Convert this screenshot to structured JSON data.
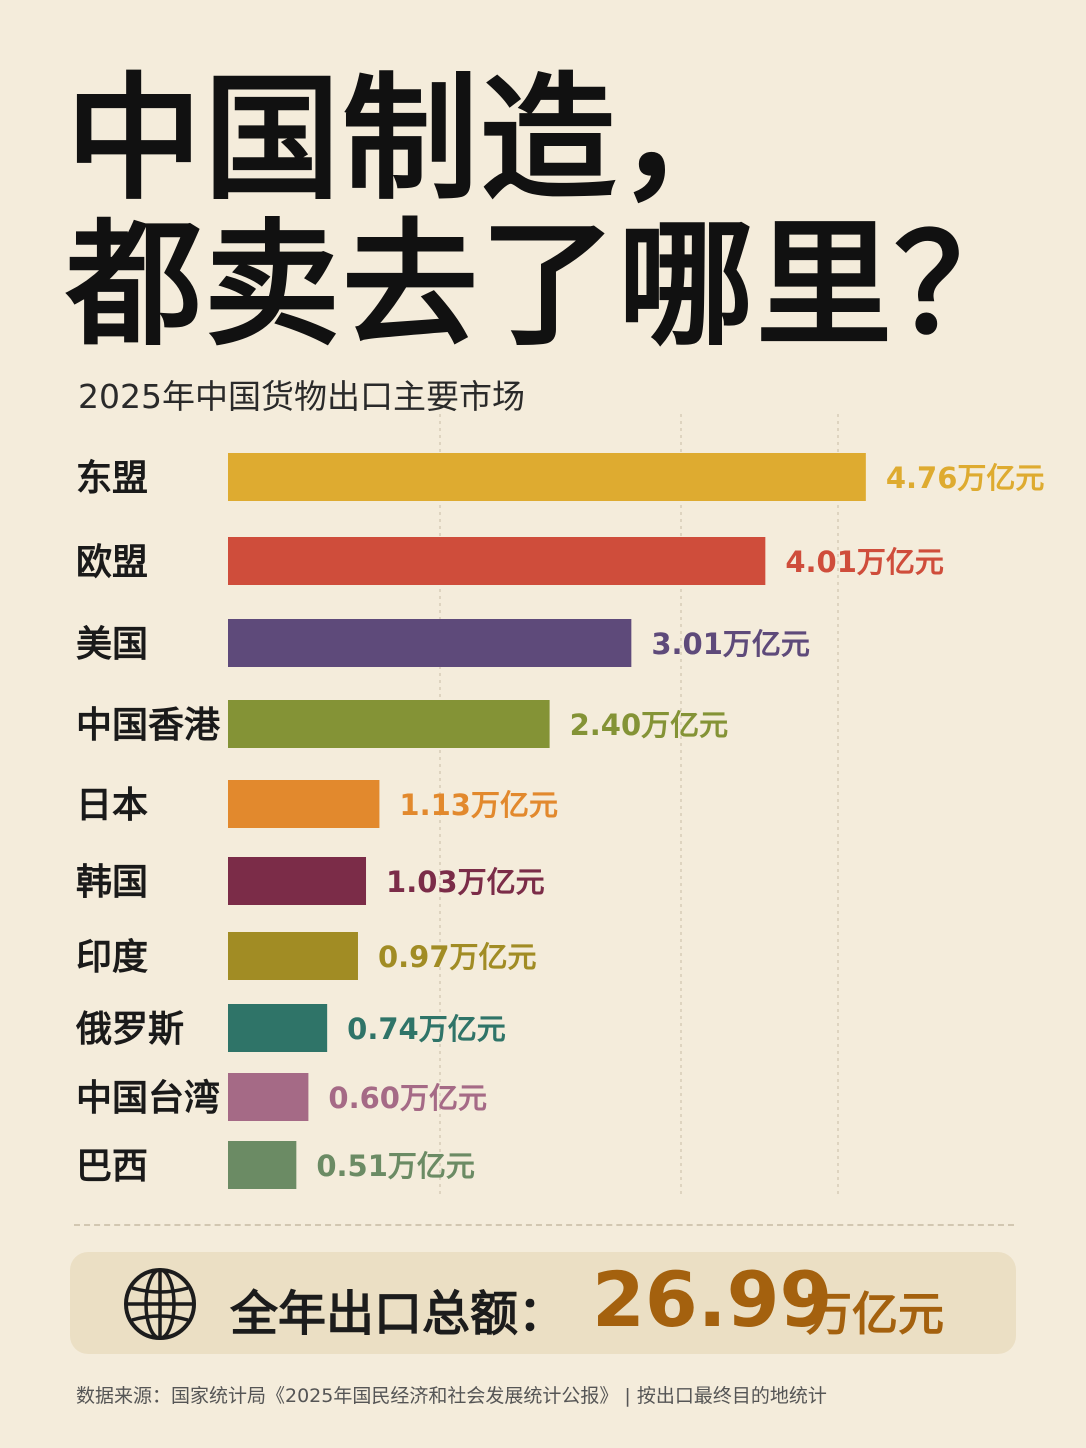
{
  "title": {
    "line1": "中国制造，",
    "line2": "都卖去了哪里？"
  },
  "subtitle": "2025年中国货物出口主要市场",
  "chart_data": {
    "type": "bar",
    "orientation": "horizontal",
    "categories": [
      "东盟",
      "欧盟",
      "美国",
      "中国香港",
      "日本",
      "韩国",
      "印度",
      "俄罗斯",
      "中国台湾",
      "巴西"
    ],
    "values": [
      4.76,
      4.01,
      3.01,
      2.4,
      1.13,
      1.03,
      0.97,
      0.74,
      0.6,
      0.51
    ],
    "value_labels": [
      "4.76万亿元",
      "4.01万亿元",
      "3.01万亿元",
      "2.40万亿元",
      "1.13万亿元",
      "1.03万亿元",
      "0.97万亿元",
      "0.74万亿元",
      "0.60万亿元",
      "0.51万亿元"
    ],
    "unit": "万亿元",
    "colors": [
      "#deab30",
      "#cf4d3b",
      "#5e4a7a",
      "#849336",
      "#e2892d",
      "#7b2c48",
      "#a18c24",
      "#2f7468",
      "#a56a86",
      "#6b8b64"
    ],
    "grid": "vertical dashed",
    "legend": "none"
  },
  "total": {
    "label": "全年出口总额：",
    "value": "26.99",
    "unit": "万亿元",
    "icon": "globe-icon"
  },
  "source": "数据来源：国家统计局《2025年国民经济和社会发展统计公报》 | 按出口最终目的地统计"
}
